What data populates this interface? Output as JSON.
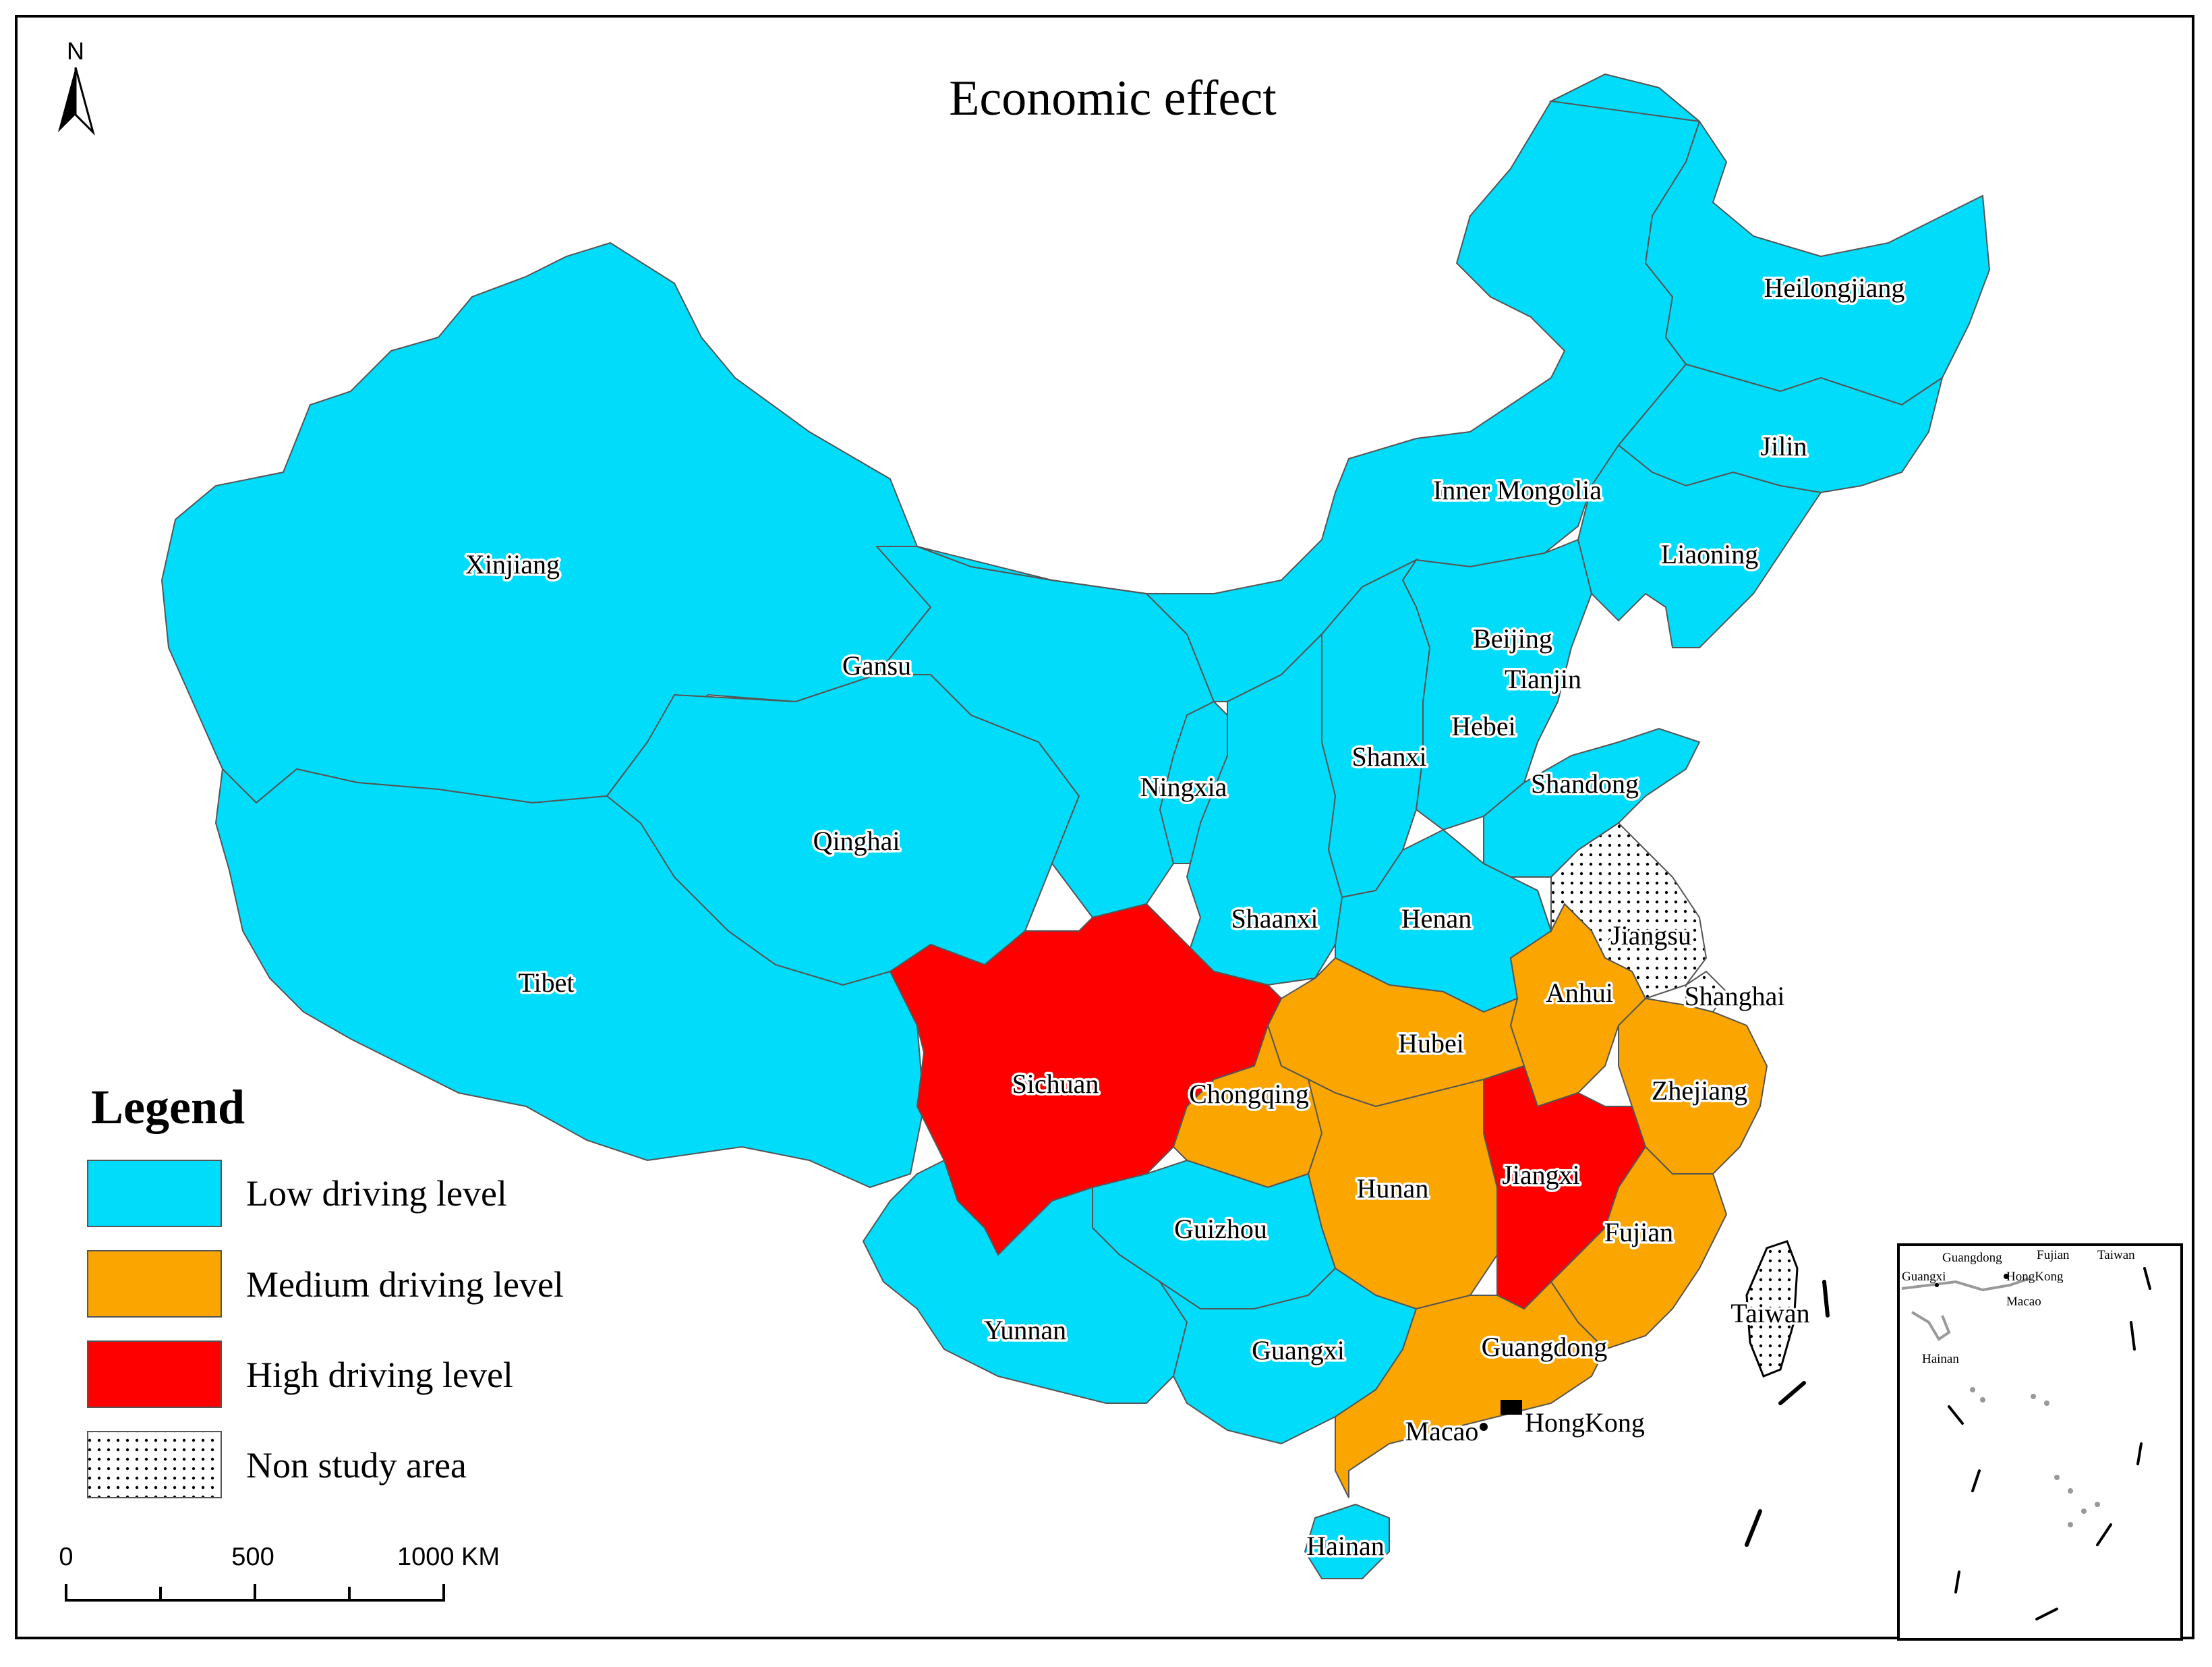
{
  "map": {
    "title": "Economic effect",
    "north": "N",
    "colors": {
      "low": "#00dcfa",
      "medium": "#fba600",
      "high": "#ff0000",
      "non_study": "#ffffff",
      "border": "#555555",
      "coast": "#999999"
    },
    "provinces": [
      {
        "name": "Xinjiang",
        "level": "low"
      },
      {
        "name": "Tibet",
        "level": "low"
      },
      {
        "name": "Qinghai",
        "level": "low"
      },
      {
        "name": "Gansu",
        "level": "low"
      },
      {
        "name": "Inner Mongolia",
        "level": "low"
      },
      {
        "name": "Heilongjiang",
        "level": "low"
      },
      {
        "name": "Jilin",
        "level": "low"
      },
      {
        "name": "Liaoning",
        "level": "low"
      },
      {
        "name": "Beijing",
        "level": "low"
      },
      {
        "name": "Tianjin",
        "level": "low"
      },
      {
        "name": "Hebei",
        "level": "low"
      },
      {
        "name": "Shanxi",
        "level": "low"
      },
      {
        "name": "Shandong",
        "level": "low"
      },
      {
        "name": "Ningxia",
        "level": "low"
      },
      {
        "name": "Shaanxi",
        "level": "low"
      },
      {
        "name": "Henan",
        "level": "low"
      },
      {
        "name": "Jiangsu",
        "level": "non_study"
      },
      {
        "name": "Shanghai",
        "level": "non_study"
      },
      {
        "name": "Anhui",
        "level": "medium"
      },
      {
        "name": "Hubei",
        "level": "medium"
      },
      {
        "name": "Zhejiang",
        "level": "medium"
      },
      {
        "name": "Sichuan",
        "level": "high"
      },
      {
        "name": "Chongqing",
        "level": "medium"
      },
      {
        "name": "Hunan",
        "level": "medium"
      },
      {
        "name": "Jiangxi",
        "level": "high"
      },
      {
        "name": "Fujian",
        "level": "medium"
      },
      {
        "name": "Guizhou",
        "level": "low"
      },
      {
        "name": "Yunnan",
        "level": "low"
      },
      {
        "name": "Guangxi",
        "level": "low"
      },
      {
        "name": "Guangdong",
        "level": "medium"
      },
      {
        "name": "Macao",
        "level": "medium"
      },
      {
        "name": "HongKong",
        "level": "medium"
      },
      {
        "name": "Taiwan",
        "level": "non_study"
      },
      {
        "name": "Hainan",
        "level": "low"
      }
    ],
    "inset_labels": [
      "Guangdong",
      "Fujian",
      "Taiwan",
      "Guangxi",
      "HongKong",
      "Macao",
      "Hainan"
    ]
  },
  "legend": {
    "title": "Legend",
    "items": [
      {
        "label": "Low driving level",
        "color": "#00dcfa"
      },
      {
        "label": "Medium driving level",
        "color": "#fba600"
      },
      {
        "label": "High driving level",
        "color": "#ff0000"
      },
      {
        "label": "Non study area",
        "color": "pattern-dots"
      }
    ]
  },
  "scale_bar": {
    "labels": [
      "0",
      "500",
      "1000 KM"
    ]
  }
}
